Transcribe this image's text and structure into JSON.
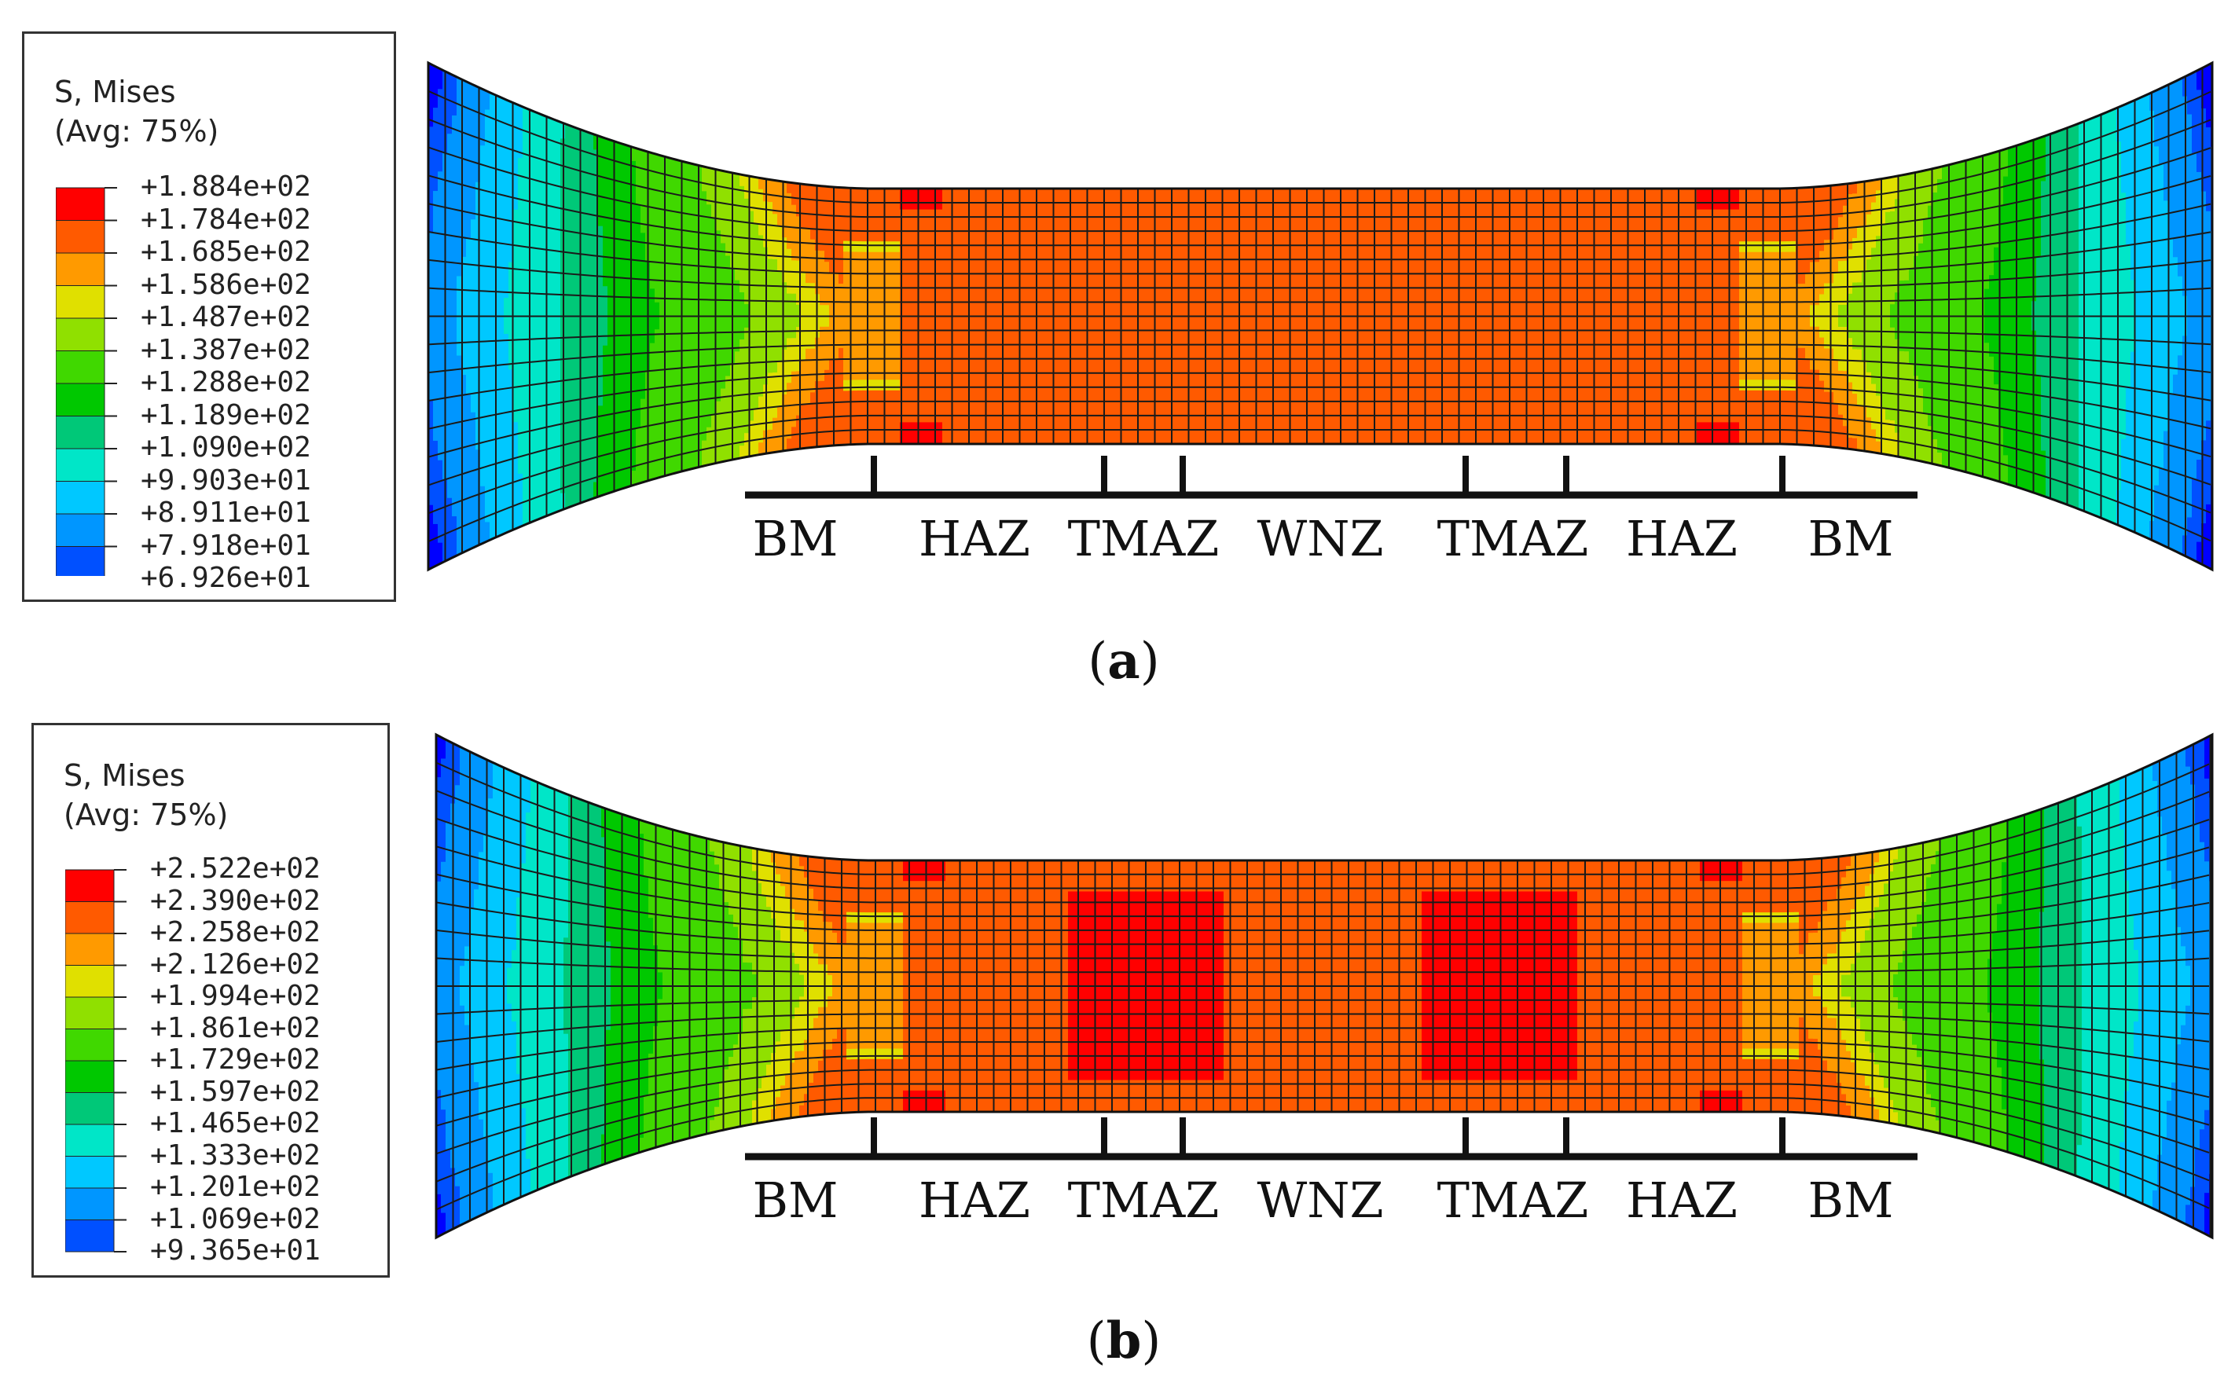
{
  "panels": [
    {
      "id": "a",
      "caption_letter": "a",
      "legend": {
        "title_line1": "S, Mises",
        "title_line2": "(Avg: 75%)",
        "values": [
          "+1.884e+02",
          "+1.784e+02",
          "+1.685e+02",
          "+1.586e+02",
          "+1.487e+02",
          "+1.387e+02",
          "+1.288e+02",
          "+1.189e+02",
          "+1.090e+02",
          "+9.903e+01",
          "+8.911e+01",
          "+7.918e+01",
          "+6.926e+01"
        ]
      },
      "zones": [
        "BM",
        "HAZ",
        "TMAZ",
        "WNZ",
        "TMAZ",
        "HAZ",
        "BM"
      ]
    },
    {
      "id": "b",
      "caption_letter": "b",
      "legend": {
        "title_line1": "S, Mises",
        "title_line2": "(Avg: 75%)",
        "values": [
          "+2.522e+02",
          "+2.390e+02",
          "+2.258e+02",
          "+2.126e+02",
          "+1.994e+02",
          "+1.861e+02",
          "+1.729e+02",
          "+1.597e+02",
          "+1.465e+02",
          "+1.333e+02",
          "+1.201e+02",
          "+1.069e+02",
          "+9.365e+01"
        ]
      },
      "zones": [
        "BM",
        "HAZ",
        "TMAZ",
        "WNZ",
        "TMAZ",
        "HAZ",
        "BM"
      ]
    }
  ],
  "colormap": [
    "#ff0000",
    "#ff5a00",
    "#ff9a00",
    "#e0e000",
    "#90e000",
    "#40d800",
    "#00c800",
    "#00c878",
    "#00e6c8",
    "#00c8ff",
    "#0096ff",
    "#0050ff",
    "#0000ff"
  ]
}
